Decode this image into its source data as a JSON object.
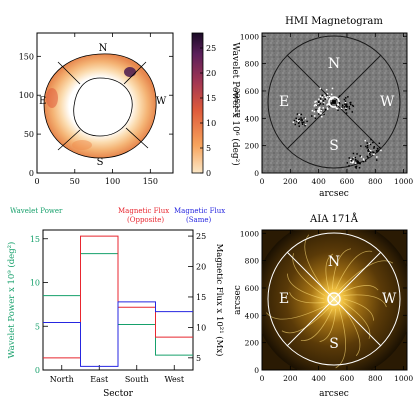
{
  "chart_data": [
    {
      "type": "heatmap",
      "panel": "top-left",
      "xlim": [
        0,
        180
      ],
      "ylim": [
        0,
        180
      ],
      "xticks": [
        0,
        50,
        100,
        150
      ],
      "yticks": [
        0,
        50,
        100,
        150
      ],
      "sector_labels": {
        "north": "N",
        "east": "E",
        "west": "W",
        "south": "S"
      },
      "colorbar": {
        "label": "Wavelet Power x 10⁶ (deg²)",
        "ticks": [
          0,
          5,
          10,
          15,
          20,
          25
        ],
        "range": [
          0,
          28
        ],
        "colors": [
          "#fbe7c6",
          "#f7a35c",
          "#de5a3b",
          "#a23653",
          "#5b1f5a",
          "#1a0a26"
        ]
      }
    },
    {
      "type": "heatmap",
      "panel": "top-right",
      "title": "HMI Magnetogram",
      "ylabel": "arcsec",
      "xlabel": "arcsec",
      "xlim": [
        0,
        1024
      ],
      "ylim": [
        0,
        1024
      ],
      "xticks": [
        0,
        200,
        400,
        600,
        800,
        1000
      ],
      "yticks": [
        0,
        200,
        400,
        600,
        800,
        1000
      ],
      "sector_labels": {
        "north": "N",
        "east": "E",
        "west": "W",
        "south": "S"
      }
    },
    {
      "type": "line",
      "panel": "bottom-left",
      "xlabel": "Sector",
      "categories": [
        "North",
        "East",
        "South",
        "West"
      ],
      "left_axis": {
        "label": "Wavelet Power x 10⁹ (deg²)",
        "ylim": [
          0,
          16
        ],
        "ticks": [
          0,
          5,
          10,
          15
        ],
        "color": "#16a06b"
      },
      "right_axis": {
        "label": "Magnetic Flux x 10²¹ (Mx)",
        "ylim": [
          3,
          26
        ],
        "ticks": [
          5,
          10,
          15,
          20,
          25
        ],
        "color": "#000000"
      },
      "series": [
        {
          "name": "Wavelet Power",
          "axis": "left",
          "color": "#16a06b",
          "values": [
            8.5,
            13.3,
            5.2,
            1.7
          ]
        },
        {
          "name": "Magnetic Flux (Opposite)",
          "axis": "right",
          "color": "#e8262f",
          "values": [
            5.0,
            25.0,
            13.3,
            8.4
          ]
        },
        {
          "name": "Magnetic Flux (Same)",
          "axis": "right",
          "color": "#2626e0",
          "values": [
            10.8,
            3.6,
            14.2,
            12.6
          ]
        }
      ],
      "legend": {
        "wavelet": "Wavelet Power",
        "opposite_line1": "Magnetic Flux",
        "opposite_line2": "(Opposite)",
        "same_line1": "Magnetic Flux",
        "same_line2": "(Same)"
      }
    },
    {
      "type": "heatmap",
      "panel": "bottom-right",
      "title": "AIA 171Å",
      "ylabel": "arcsec",
      "xlabel": "arcsec",
      "xlim": [
        0,
        1024
      ],
      "ylim": [
        0,
        1024
      ],
      "xticks": [
        0,
        200,
        400,
        600,
        800,
        1000
      ],
      "yticks": [
        0,
        200,
        400,
        600,
        800,
        1000
      ],
      "sector_labels": {
        "north": "N",
        "east": "E",
        "west": "W",
        "south": "S"
      }
    }
  ]
}
